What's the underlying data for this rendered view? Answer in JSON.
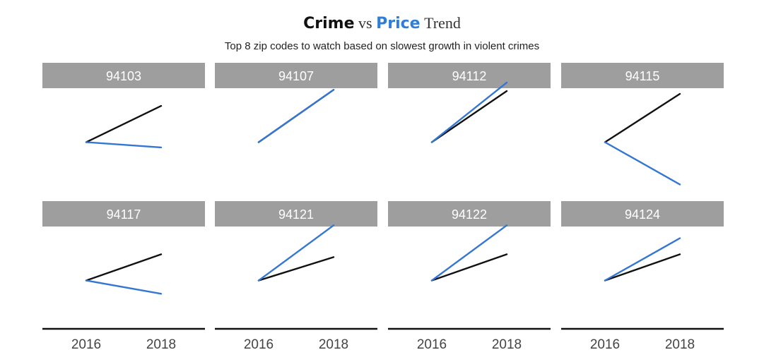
{
  "title_parts": [
    {
      "text": "Crime",
      "color": "#111111"
    },
    {
      "text": "vs",
      "color": "#333333"
    },
    {
      "text": "Price",
      "color": "#2f7ed8"
    },
    {
      "text": "Trend",
      "color": "#333333"
    }
  ],
  "subtitle": "Top 8 zip codes to watch based on slowest growth in violent crimes",
  "colors": {
    "crime": "#111111",
    "price": "#3477d2",
    "strip_background": "#9e9e9e",
    "strip_text": "#ffffff",
    "axis": "#111111"
  },
  "chart_data": {
    "type": "line",
    "facet_by": "zip_code",
    "x": [
      2016,
      2018
    ],
    "x_tick_labels": [
      "2016",
      "2018"
    ],
    "ylim": [
      -1.2,
      1.2
    ],
    "grid": false,
    "legend": "none",
    "series_keys": [
      "crime",
      "price"
    ],
    "facets": [
      {
        "label": "94103",
        "crime": [
          0,
          0.9
        ],
        "price": [
          0,
          -0.13
        ]
      },
      {
        "label": "94107",
        "crime": [
          0,
          1.3
        ],
        "price": [
          0,
          1.3
        ]
      },
      {
        "label": "94112",
        "crime": [
          0,
          1.27
        ],
        "price": [
          0,
          1.48
        ]
      },
      {
        "label": "94115",
        "crime": [
          0,
          1.2
        ],
        "price": [
          0,
          -1.05
        ]
      },
      {
        "label": "94117",
        "crime": [
          0,
          0.65
        ],
        "price": [
          0,
          -0.33
        ]
      },
      {
        "label": "94121",
        "crime": [
          0,
          0.58
        ],
        "price": [
          0,
          1.37
        ]
      },
      {
        "label": "94122",
        "crime": [
          0,
          0.65
        ],
        "price": [
          0,
          1.37
        ]
      },
      {
        "label": "94124",
        "crime": [
          0,
          0.65
        ],
        "price": [
          0,
          1.05
        ]
      }
    ]
  }
}
